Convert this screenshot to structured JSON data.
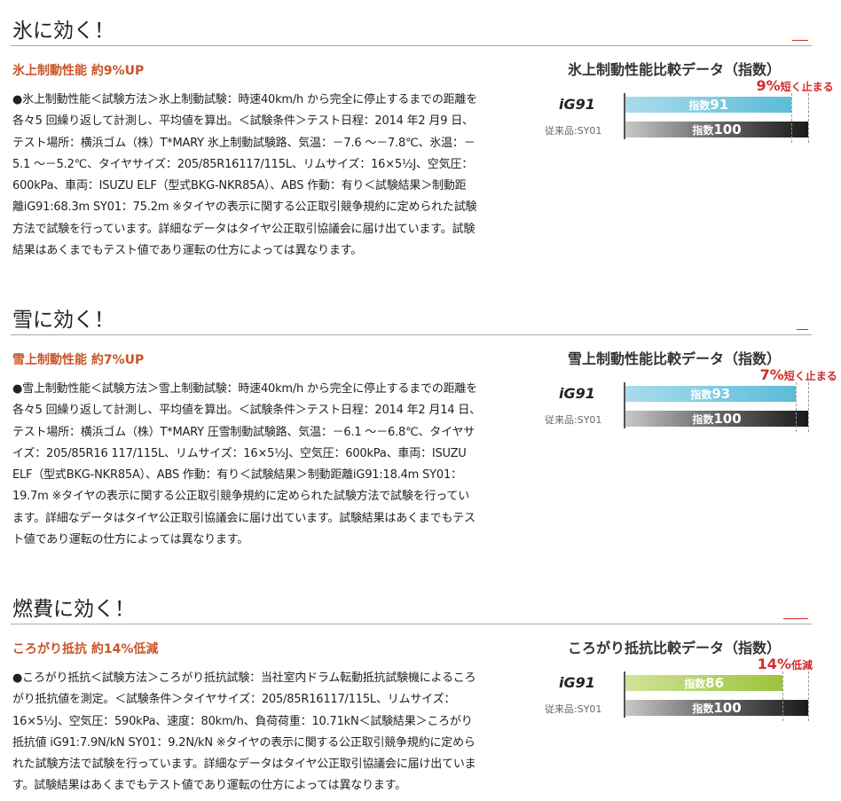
{
  "sections": [
    {
      "title": "氷に効く！",
      "subtitle": "氷上制動性能 約9%UP",
      "body": [
        "●氷上制動性能＜試験方法＞氷上制動試験：時速40km/h から完全に停止するまでの距離を",
        "各々5 回繰り返して計測し、平均値を算出。＜試験条件＞テスト日程：2014 年2 月9 日、",
        "テスト場所：横浜ゴム（株）T*MARY 氷上制動試験路、気温：－7.6 ～－7.8℃、氷温：－",
        "5.1 ～－5.2℃、タイヤサイズ：205/85R16117/115L、リムサイズ：16×5½J、空気圧：",
        "600kPa、車両：ISUZU ELF（型式BKG-NKR85A）、ABS 作動：有り＜試験結果＞制動距",
        "離iG91:68.3m SY01：75.2m ※タイヤの表示に関する公正取引競争規約に定められた試験",
        "方法で試験を行っています。詳細なデータはタイヤ公正取引協議会に届け出ています。試験",
        "結果はあくまでもテスト値であり運転の仕方によっては異なります。"
      ],
      "chart": {
        "title": "氷上制動性能比較データ（指数）",
        "label_new": "iG91",
        "label_old": "従来品:SY01",
        "value_new": 91,
        "value_old": 100,
        "prefix": "指数",
        "diff_value": "9%",
        "diff_text": "短く止まる",
        "color_new": "#5bbcd8",
        "color_new_light": "#a9dcec"
      }
    },
    {
      "title": "雪に効く！",
      "subtitle": "雪上制動性能 約7%UP",
      "body": [
        "●雪上制動性能＜試験方法＞雪上制動試験：時速40km/h から完全に停止するまでの距離を",
        "各々5 回繰り返して計測し、平均値を算出。＜試験条件＞テスト日程：2014 年2 月14 日、",
        "テスト場所：横浜ゴム（株）T*MARY 圧雪制動試験路、気温：－6.1 ～－6.8℃、タイヤサ",
        "イズ：205/85R16 117/115L、リムサイズ：16×5½J、空気圧：600kPa、車両：ISUZU",
        "ELF（型式BKG-NKR85A）、ABS 作動：有り＜試験結果＞制動距離iG91:18.4m SY01：",
        "19.7m ※タイヤの表示に関する公正取引競争規約に定められた試験方法で試験を行ってい",
        "ます。詳細なデータはタイヤ公正取引協議会に届け出ています。試験結果はあくまでもテス",
        "ト値であり運転の仕方によっては異なります。"
      ],
      "chart": {
        "title": "雪上制動性能比較データ（指数）",
        "label_new": "iG91",
        "label_old": "従来品:SY01",
        "value_new": 93,
        "value_old": 100,
        "prefix": "指数",
        "diff_value": "7%",
        "diff_text": "短く止まる",
        "color_new": "#5bbcd8",
        "color_new_light": "#a9dcec"
      }
    },
    {
      "title": "燃費に効く！",
      "subtitle": "ころがり抵抗 約14%低減",
      "body": [
        "●ころがり抵抗＜試験方法＞ころがり抵抗試験：当社室内ドラム転動抵抗試験機によるころ",
        "がり抵抗値を測定。＜試験条件＞タイヤサイズ：205/85R16117/115L、リムサイズ：",
        "16×5½J、空気圧：590kPa、速度：80km/h、負荷荷重：10.71kN＜試験結果＞ころがり",
        "抵抗値 iG91:7.9N/kN SY01：9.2N/kN ※タイヤの表示に関する公正取引競争規約に定めら",
        "れた試験方法で試験を行っています。詳細なデータはタイヤ公正取引協議会に届け出ていま",
        "す。試験結果はあくまでもテスト値であり運転の仕方によっては異なります。"
      ],
      "chart": {
        "title": "ころがり抵抗比較データ（指数）",
        "label_new": "iG91",
        "label_old": "従来品:SY01",
        "value_new": 86,
        "value_old": 100,
        "prefix": "指数",
        "diff_value": "14%",
        "diff_text": "低減",
        "color_new": "#9cc43a",
        "color_new_light": "#cfe39a"
      }
    }
  ]
}
